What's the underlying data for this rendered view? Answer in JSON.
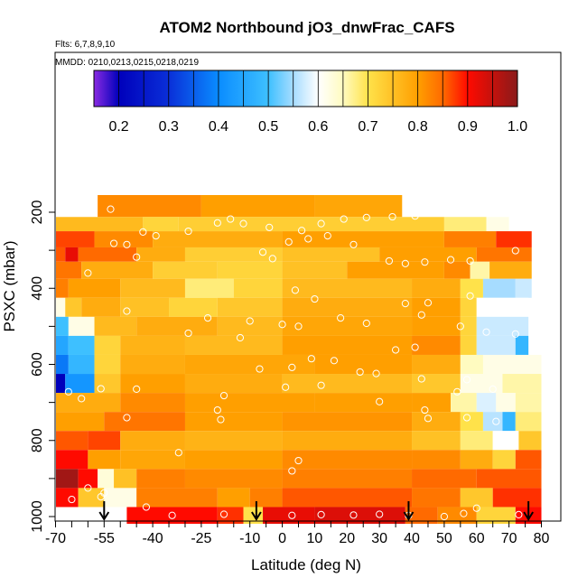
{
  "chart_data": {
    "type": "heatmap",
    "title": "ATOM2 Northbound jO3_dnwFrac_CAFS",
    "flights_note": "Flts: 6,7,8,9,10",
    "dates_note": "MMDD: 0210,0213,0215,0218,0219",
    "xlabel": "Latitude (deg N)",
    "ylabel": "PSXC (mbar)",
    "xlim": [
      -70,
      82
    ],
    "ylim": [
      1020,
      120
    ],
    "x_ticks": [
      -70,
      -55,
      -40,
      -25,
      -10,
      0,
      10,
      20,
      30,
      40,
      50,
      60,
      70,
      80
    ],
    "y_ticks": [
      200,
      400,
      600,
      800,
      1000
    ],
    "colorbar": {
      "min": 0.15,
      "max": 1.0,
      "ticks": [
        0.2,
        0.3,
        0.4,
        0.5,
        0.6,
        0.7,
        0.8,
        0.9,
        1.0
      ],
      "tick_labels": [
        "0.2",
        "0.3",
        "0.4",
        "0.5",
        "0.6",
        "0.7",
        "0.8",
        "0.9",
        "1.0"
      ],
      "stops": [
        {
          "v": 0.15,
          "c": "#8a2be2"
        },
        {
          "v": 0.2,
          "c": "#0000bb"
        },
        {
          "v": 0.3,
          "c": "#0a2fd8"
        },
        {
          "v": 0.4,
          "c": "#0a8cff"
        },
        {
          "v": 0.5,
          "c": "#3ec0ff"
        },
        {
          "v": 0.55,
          "c": "#a6dcff"
        },
        {
          "v": 0.6,
          "c": "#ffffff"
        },
        {
          "v": 0.65,
          "c": "#fffbc0"
        },
        {
          "v": 0.7,
          "c": "#ffe24a"
        },
        {
          "v": 0.8,
          "c": "#ff9f00"
        },
        {
          "v": 0.85,
          "c": "#ff6a00"
        },
        {
          "v": 0.9,
          "c": "#ff0a00"
        },
        {
          "v": 1.0,
          "c": "#8a1a1a"
        }
      ]
    },
    "levels": [
      {
        "p": 200,
        "bins": [
          [
            -57,
            -25,
            0.82
          ],
          [
            -25,
            10,
            0.8
          ],
          [
            10,
            37,
            0.79
          ]
        ]
      },
      {
        "p": 225,
        "bins": [
          [
            -70,
            -43,
            0.76
          ],
          [
            -43,
            -32,
            0.72
          ],
          [
            -32,
            50,
            0.73
          ],
          [
            50,
            63,
            0.68
          ],
          [
            63,
            70,
            0.62
          ]
        ]
      },
      {
        "p": 275,
        "bins": [
          [
            -70,
            -58,
            0.87
          ],
          [
            -58,
            -40,
            0.82
          ],
          [
            -40,
            0,
            0.78
          ],
          [
            0,
            50,
            0.8
          ],
          [
            50,
            66,
            0.83
          ],
          [
            66,
            77,
            0.88
          ]
        ]
      },
      {
        "p": 310,
        "bins": [
          [
            -70,
            -67,
            0.86
          ],
          [
            -67,
            -63,
            0.92
          ],
          [
            -63,
            -45,
            0.85
          ],
          [
            -45,
            -30,
            0.78
          ],
          [
            -30,
            0,
            0.73
          ],
          [
            0,
            30,
            0.75
          ],
          [
            30,
            60,
            0.8
          ],
          [
            60,
            77,
            0.84
          ]
        ]
      },
      {
        "p": 350,
        "bins": [
          [
            -70,
            -62,
            0.84
          ],
          [
            -62,
            -40,
            0.78
          ],
          [
            -40,
            -20,
            0.73
          ],
          [
            -20,
            0,
            0.72
          ],
          [
            0,
            20,
            0.75
          ],
          [
            20,
            50,
            0.8
          ],
          [
            50,
            58,
            0.82
          ],
          [
            58,
            64,
            0.66
          ],
          [
            64,
            77,
            0.78
          ]
        ]
      },
      {
        "p": 400,
        "bins": [
          [
            -70,
            -66,
            0.83
          ],
          [
            -66,
            -50,
            0.8
          ],
          [
            -50,
            -30,
            0.76
          ],
          [
            -30,
            -15,
            0.68
          ],
          [
            -15,
            0,
            0.72
          ],
          [
            0,
            40,
            0.76
          ],
          [
            40,
            55,
            0.78
          ],
          [
            55,
            62,
            0.7
          ],
          [
            62,
            72,
            0.55
          ],
          [
            72,
            77,
            0.57
          ]
        ]
      },
      {
        "p": 450,
        "bins": [
          [
            -70,
            -67,
            0.62
          ],
          [
            -67,
            -62,
            0.74
          ],
          [
            -62,
            -50,
            0.78
          ],
          [
            -50,
            -35,
            0.75
          ],
          [
            -35,
            -20,
            0.72
          ],
          [
            -20,
            0,
            0.74
          ],
          [
            0,
            40,
            0.78
          ],
          [
            40,
            55,
            0.8
          ],
          [
            55,
            60,
            0.72
          ],
          [
            60,
            76,
            0.6
          ]
        ]
      },
      {
        "p": 500,
        "bins": [
          [
            -70,
            -66,
            0.5
          ],
          [
            -66,
            -58,
            0.62
          ],
          [
            -58,
            -45,
            0.76
          ],
          [
            -45,
            -20,
            0.78
          ],
          [
            -20,
            0,
            0.76
          ],
          [
            0,
            40,
            0.79
          ],
          [
            40,
            55,
            0.8
          ],
          [
            55,
            60,
            0.72
          ],
          [
            60,
            76,
            0.57
          ]
        ]
      },
      {
        "p": 550,
        "bins": [
          [
            -70,
            -66,
            0.45
          ],
          [
            -66,
            -58,
            0.5
          ],
          [
            -58,
            -50,
            0.72
          ],
          [
            -50,
            -30,
            0.77
          ],
          [
            -30,
            0,
            0.76
          ],
          [
            0,
            40,
            0.8
          ],
          [
            40,
            55,
            0.82
          ],
          [
            55,
            60,
            0.72
          ],
          [
            60,
            72,
            0.57
          ],
          [
            72,
            76,
            0.48
          ]
        ]
      },
      {
        "p": 600,
        "bins": [
          [
            -70,
            -66,
            0.38
          ],
          [
            -66,
            -58,
            0.48
          ],
          [
            -58,
            -50,
            0.72
          ],
          [
            -50,
            -30,
            0.78
          ],
          [
            -30,
            10,
            0.79
          ],
          [
            10,
            40,
            0.8
          ],
          [
            40,
            55,
            0.78
          ],
          [
            55,
            62,
            0.65
          ],
          [
            62,
            80,
            0.62
          ]
        ]
      },
      {
        "p": 650,
        "bins": [
          [
            -70,
            -67,
            0.2
          ],
          [
            -67,
            -58,
            0.42
          ],
          [
            -58,
            -50,
            0.74
          ],
          [
            -50,
            -30,
            0.8
          ],
          [
            -30,
            0,
            0.78
          ],
          [
            0,
            40,
            0.76
          ],
          [
            40,
            55,
            0.74
          ],
          [
            55,
            68,
            0.62
          ],
          [
            68,
            80,
            0.66
          ]
        ]
      },
      {
        "p": 700,
        "bins": [
          [
            -70,
            -50,
            0.78
          ],
          [
            -50,
            -30,
            0.82
          ],
          [
            -30,
            10,
            0.8
          ],
          [
            10,
            40,
            0.8
          ],
          [
            40,
            52,
            0.8
          ],
          [
            52,
            60,
            0.66
          ],
          [
            60,
            66,
            0.58
          ],
          [
            66,
            72,
            0.62
          ],
          [
            72,
            80,
            0.66
          ]
        ]
      },
      {
        "p": 750,
        "bins": [
          [
            -70,
            -55,
            0.8
          ],
          [
            -55,
            -30,
            0.84
          ],
          [
            -30,
            0,
            0.8
          ],
          [
            0,
            40,
            0.81
          ],
          [
            40,
            55,
            0.78
          ],
          [
            55,
            62,
            0.7
          ],
          [
            62,
            68,
            0.56
          ],
          [
            68,
            72,
            0.48
          ],
          [
            72,
            80,
            0.68
          ]
        ]
      },
      {
        "p": 800,
        "bins": [
          [
            -70,
            -60,
            0.86
          ],
          [
            -60,
            -50,
            0.87
          ],
          [
            -50,
            -30,
            0.78
          ],
          [
            -30,
            0,
            0.77
          ],
          [
            0,
            40,
            0.78
          ],
          [
            40,
            55,
            0.75
          ],
          [
            55,
            65,
            0.68
          ],
          [
            65,
            73,
            0.6
          ],
          [
            73,
            80,
            0.74
          ]
        ]
      },
      {
        "p": 850,
        "bins": [
          [
            -70,
            -60,
            0.9
          ],
          [
            -60,
            -50,
            0.8
          ],
          [
            -50,
            -30,
            0.79
          ],
          [
            -30,
            0,
            0.8
          ],
          [
            0,
            40,
            0.82
          ],
          [
            40,
            55,
            0.82
          ],
          [
            55,
            65,
            0.78
          ],
          [
            65,
            72,
            0.72
          ],
          [
            72,
            80,
            0.86
          ]
        ]
      },
      {
        "p": 900,
        "bins": [
          [
            -70,
            -63,
            0.98
          ],
          [
            -63,
            -57,
            0.9
          ],
          [
            -57,
            -52,
            0.63
          ],
          [
            -52,
            -45,
            0.75
          ],
          [
            -45,
            -30,
            0.83
          ],
          [
            -30,
            0,
            0.82
          ],
          [
            0,
            40,
            0.83
          ],
          [
            40,
            60,
            0.85
          ],
          [
            60,
            80,
            0.86
          ]
        ]
      },
      {
        "p": 950,
        "bins": [
          [
            -70,
            -63,
            0.9
          ],
          [
            -63,
            -55,
            0.74
          ],
          [
            -55,
            -45,
            0.62
          ],
          [
            -45,
            -20,
            0.83
          ],
          [
            -20,
            -10,
            0.8
          ],
          [
            -10,
            0,
            0.83
          ],
          [
            0,
            40,
            0.86
          ],
          [
            40,
            55,
            0.84
          ],
          [
            55,
            65,
            0.74
          ],
          [
            65,
            80,
            0.88
          ]
        ]
      },
      {
        "p": 1000,
        "bins": [
          [
            -48,
            -20,
            0.9
          ],
          [
            -20,
            -12,
            0.88
          ],
          [
            -12,
            -6,
            0.7
          ],
          [
            -6,
            10,
            0.92
          ],
          [
            10,
            38,
            0.93
          ],
          [
            38,
            48,
            0.85
          ],
          [
            48,
            60,
            0.82
          ],
          [
            60,
            72,
            0.72
          ],
          [
            72,
            80,
            0.9
          ]
        ]
      }
    ],
    "arrows_lat": [
      -55,
      -8,
      39,
      76
    ],
    "sample_points": [
      {
        "lat": -53,
        "p": 192
      },
      {
        "lat": -43,
        "p": 252
      },
      {
        "lat": -39,
        "p": 262
      },
      {
        "lat": -29,
        "p": 250
      },
      {
        "lat": -20,
        "p": 228
      },
      {
        "lat": -16,
        "p": 218
      },
      {
        "lat": -12,
        "p": 230
      },
      {
        "lat": -4,
        "p": 240
      },
      {
        "lat": 6,
        "p": 248
      },
      {
        "lat": 12,
        "p": 230
      },
      {
        "lat": 19,
        "p": 218
      },
      {
        "lat": 26,
        "p": 214
      },
      {
        "lat": 34,
        "p": 212
      },
      {
        "lat": 41,
        "p": 210
      },
      {
        "lat": -52,
        "p": 282
      },
      {
        "lat": -48,
        "p": 285
      },
      {
        "lat": 2,
        "p": 278
      },
      {
        "lat": 8,
        "p": 270
      },
      {
        "lat": 14,
        "p": 262
      },
      {
        "lat": 22,
        "p": 285
      },
      {
        "lat": 33,
        "p": 328
      },
      {
        "lat": 38,
        "p": 335
      },
      {
        "lat": 44,
        "p": 331
      },
      {
        "lat": 52,
        "p": 325
      },
      {
        "lat": 58,
        "p": 328
      },
      {
        "lat": 72,
        "p": 301
      },
      {
        "lat": -60,
        "p": 360
      },
      {
        "lat": -45,
        "p": 318
      },
      {
        "lat": -6,
        "p": 305
      },
      {
        "lat": -3,
        "p": 322
      },
      {
        "lat": 4,
        "p": 405
      },
      {
        "lat": 10,
        "p": 428
      },
      {
        "lat": 38,
        "p": 440
      },
      {
        "lat": 45,
        "p": 438
      },
      {
        "lat": 58,
        "p": 420
      },
      {
        "lat": -48,
        "p": 460
      },
      {
        "lat": -23,
        "p": 478
      },
      {
        "lat": -10,
        "p": 486
      },
      {
        "lat": 0,
        "p": 495
      },
      {
        "lat": 18,
        "p": 478
      },
      {
        "lat": 26,
        "p": 492
      },
      {
        "lat": 43,
        "p": 470
      },
      {
        "lat": 55,
        "p": 500
      },
      {
        "lat": -29,
        "p": 518
      },
      {
        "lat": -13,
        "p": 530
      },
      {
        "lat": 5,
        "p": 500
      },
      {
        "lat": 9,
        "p": 585
      },
      {
        "lat": 16,
        "p": 590
      },
      {
        "lat": 35,
        "p": 562
      },
      {
        "lat": 41,
        "p": 555
      },
      {
        "lat": 63,
        "p": 515
      },
      {
        "lat": 72,
        "p": 520
      },
      {
        "lat": -7,
        "p": 612
      },
      {
        "lat": 3,
        "p": 608
      },
      {
        "lat": 24,
        "p": 620
      },
      {
        "lat": 29,
        "p": 624
      },
      {
        "lat": 43,
        "p": 638
      },
      {
        "lat": 57,
        "p": 640
      },
      {
        "lat": -66,
        "p": 672
      },
      {
        "lat": -62,
        "p": 690
      },
      {
        "lat": -56,
        "p": 664
      },
      {
        "lat": -45,
        "p": 665
      },
      {
        "lat": -18,
        "p": 682
      },
      {
        "lat": 1,
        "p": 660
      },
      {
        "lat": 12,
        "p": 655
      },
      {
        "lat": 30,
        "p": 698
      },
      {
        "lat": 44,
        "p": 720
      },
      {
        "lat": 54,
        "p": 672
      },
      {
        "lat": 65,
        "p": 665
      },
      {
        "lat": -48,
        "p": 740
      },
      {
        "lat": -20,
        "p": 720
      },
      {
        "lat": -19,
        "p": 745
      },
      {
        "lat": 45,
        "p": 742
      },
      {
        "lat": 57,
        "p": 740
      },
      {
        "lat": 66,
        "p": 750
      },
      {
        "lat": -32,
        "p": 832
      },
      {
        "lat": 3,
        "p": 880
      },
      {
        "lat": 5,
        "p": 853
      },
      {
        "lat": -60,
        "p": 925
      },
      {
        "lat": -55,
        "p": 938
      },
      {
        "lat": -65,
        "p": 955
      },
      {
        "lat": -56,
        "p": 948
      },
      {
        "lat": -42,
        "p": 975
      },
      {
        "lat": 60,
        "p": 978
      },
      {
        "lat": -34,
        "p": 997
      },
      {
        "lat": -18,
        "p": 994
      },
      {
        "lat": 3,
        "p": 997
      },
      {
        "lat": 12,
        "p": 995
      },
      {
        "lat": 22,
        "p": 996
      },
      {
        "lat": 30,
        "p": 994
      },
      {
        "lat": 39,
        "p": 997
      },
      {
        "lat": 50,
        "p": 1000
      },
      {
        "lat": 56,
        "p": 992
      },
      {
        "lat": 73,
        "p": 995
      }
    ]
  }
}
